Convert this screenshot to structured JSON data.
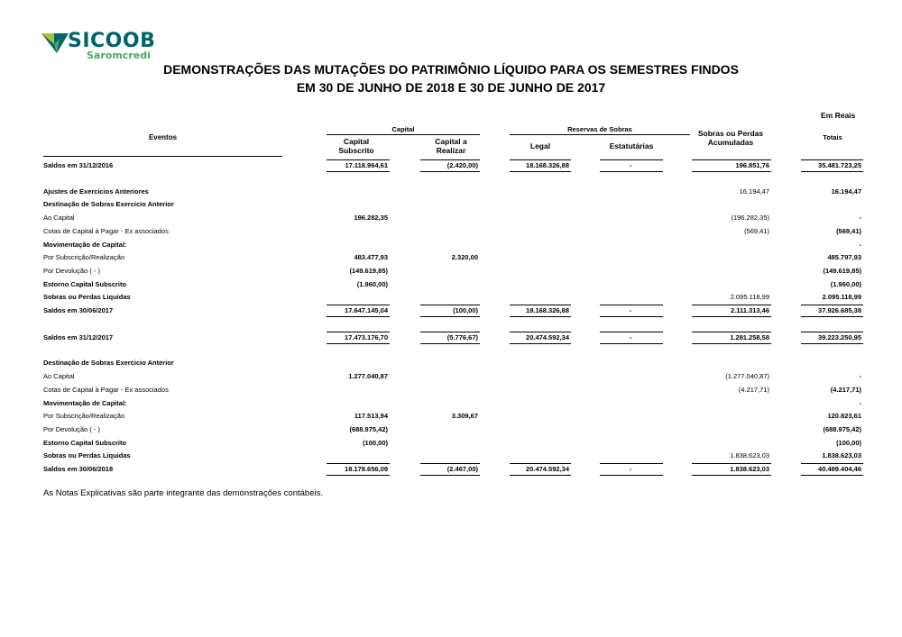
{
  "logo": {
    "name": "SICOOB",
    "subtitle": "Saromcredi",
    "colors": {
      "teal": "#00636b",
      "green": "#49a86b",
      "lime": "#a6c53a"
    }
  },
  "title": {
    "line1": "DEMONSTRAÇÕES DAS MUTAÇÕES DO PATRIMÔNIO LÍQUIDO PARA OS SEMESTRES FINDOS",
    "line2": "EM 30 DE JUNHO DE 2018 E 30 DE JUNHO DE 2017"
  },
  "currency_note": "Em Reais",
  "headers": {
    "eventos": "Eventos",
    "capital_group": "Capital",
    "capital_subscrito": [
      "Capital",
      "Subscrito"
    ],
    "capital_realizar": [
      "Capital a",
      "Realizar"
    ],
    "reservas_group": "Reservas de Sobras",
    "legal": "Legal",
    "estatutarias": "Estatutárias",
    "sobras": [
      "Sobras ou Perdas",
      "Acumuladas"
    ],
    "totais": "Totais"
  },
  "rows": [
    {
      "kind": "balance",
      "label": "Saldos em 31/12/2016",
      "cs": "17.118.964,61",
      "cr": "(2.420,00)",
      "legal": "18.168.326,88",
      "est": "-",
      "sob": "196.851,76",
      "tot": "35.481.723,25"
    },
    {
      "kind": "section",
      "label": "Ajustes de Exercicios Anteriores",
      "sob": "16.194,47",
      "tot": "16.194,47"
    },
    {
      "kind": "section",
      "label": "Destinação de Sobras Exercicio Anterior"
    },
    {
      "kind": "item",
      "label": "Ao Capital",
      "cs": "196.282,35",
      "sob": "(196.282,35)",
      "tot": "-"
    },
    {
      "kind": "item",
      "label": "Cotas de Capital à Pagar - Ex associados",
      "sob": "(569,41)",
      "tot": "(569,41)"
    },
    {
      "kind": "section",
      "label": "Movimentação de Capital:",
      "tot": "-"
    },
    {
      "kind": "item",
      "label": "Por Subscrição/Realização",
      "cs": "483.477,93",
      "cr": "2.320,00",
      "tot": "485.797,93"
    },
    {
      "kind": "item",
      "label": "Por  Devolução ( - )",
      "cs": "(149.619,85)",
      "tot": "(149.619,85)"
    },
    {
      "kind": "section",
      "label": "Estorno Capital Subscrito",
      "cs": "(1.960,00)",
      "tot": "(1.960,00)"
    },
    {
      "kind": "section",
      "label": "Sobras ou Perdas Liquidas",
      "sob": "2.095.118,99",
      "tot": "2.095.118,99"
    },
    {
      "kind": "balance",
      "label": "Saldos em 30/06/2017",
      "cs": "17.647.145,04",
      "cr": "(100,00)",
      "legal": "18.168.326,88",
      "est": "-",
      "sob": "2.111.313,46",
      "tot": "37.926.685,38"
    },
    {
      "kind": "balance",
      "label": "Saldos em 31/12/2017",
      "cs": "17.473.176,70",
      "cr": "(5.776,67)",
      "legal": "20.474.592,34",
      "est": "-",
      "sob": "1.281.258,58",
      "tot": "39.223.250,95"
    },
    {
      "kind": "section",
      "label": "Destinação de Sobras Exercicio Anterior"
    },
    {
      "kind": "item",
      "label": "Ao Capital",
      "cs": "1.277.040,87",
      "sob": "(1.277.040,87)",
      "tot": "-"
    },
    {
      "kind": "item",
      "label": "Cotas de Capital à Pagar - Ex associados",
      "sob": "(4.217,71)",
      "tot": "(4.217,71)"
    },
    {
      "kind": "section",
      "label": "Movimentação de Capital:",
      "tot": "-"
    },
    {
      "kind": "item",
      "label": "Por Subscrição/Realização",
      "cs": "117.513,94",
      "cr": "3.309,67",
      "tot": "120.823,61"
    },
    {
      "kind": "item",
      "label": "Por  Devolução ( - )",
      "cs": "(688.975,42)",
      "tot": "(688.975,42)"
    },
    {
      "kind": "section",
      "label": "Estorno Capital Subscrito",
      "cs": "(100,00)",
      "tot": "(100,00)"
    },
    {
      "kind": "section",
      "label": "Sobras ou Perdas Liquidas",
      "sob": "1.838.623,03",
      "tot": "1.838.623,03"
    },
    {
      "kind": "balance",
      "label": "Saldos em 30/06/2018",
      "cs": "18.178.656,09",
      "cr": "(2.467,00)",
      "legal": "20.474.592,34",
      "est": "-",
      "sob": "1.838.623,03",
      "tot": "40.489.404,46"
    }
  ],
  "footer_note": "As Notas Explicativas são parte integrante das demonstrações contábeis."
}
